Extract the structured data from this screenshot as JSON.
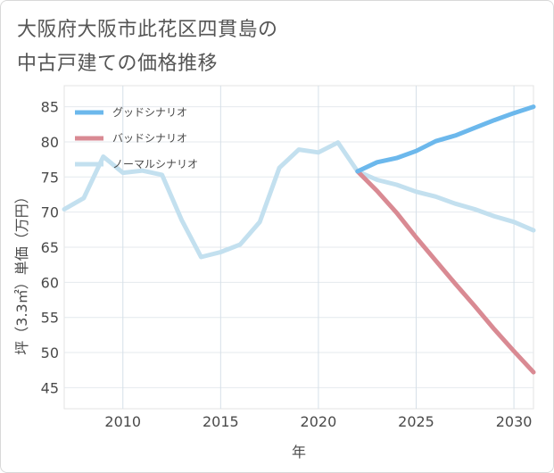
{
  "title_lines": [
    "大阪府大阪市此花区四貫島の",
    "中古戸建ての価格推移"
  ],
  "chart_data": {
    "type": "line",
    "title": "大阪府大阪市此花区四貫島の中古戸建ての価格推移",
    "xlabel": "年",
    "ylabel": "坪（3.3㎡）単価（万円）",
    "xlim": [
      2007,
      2031
    ],
    "ylim": [
      42,
      88
    ],
    "xticks": [
      2010,
      2015,
      2020,
      2025,
      2030
    ],
    "yticks": [
      45,
      50,
      55,
      60,
      65,
      70,
      75,
      80,
      85
    ],
    "grid": true,
    "legend_position": "top-left",
    "series": [
      {
        "name": "グッドシナリオ",
        "color": "#6cb8ec",
        "x": [
          2022,
          2023,
          2024,
          2025,
          2026,
          2027,
          2028,
          2029,
          2030,
          2031
        ],
        "values": [
          75.8,
          77.1,
          77.7,
          78.7,
          80.1,
          80.9,
          82.0,
          83.1,
          84.1,
          85.0
        ]
      },
      {
        "name": "バッドシナリオ",
        "color": "#d98a93",
        "x": [
          2022,
          2023,
          2024,
          2025,
          2026,
          2027,
          2028,
          2029,
          2030,
          2031
        ],
        "values": [
          75.8,
          73.0,
          69.9,
          66.4,
          63.1,
          59.8,
          56.6,
          53.3,
          50.2,
          47.2
        ]
      },
      {
        "name": "ノーマルシナリオ",
        "color": "#c3e0ef",
        "x": [
          2007,
          2008,
          2009,
          2010,
          2011,
          2012,
          2013,
          2014,
          2015,
          2016,
          2017,
          2018,
          2019,
          2020,
          2021,
          2022,
          2023,
          2024,
          2025,
          2026,
          2027,
          2028,
          2029,
          2030,
          2031
        ],
        "values": [
          70.4,
          72.0,
          77.9,
          75.6,
          75.9,
          75.3,
          68.9,
          63.6,
          64.3,
          65.4,
          68.6,
          76.3,
          78.9,
          78.5,
          79.9,
          75.8,
          74.6,
          73.9,
          72.9,
          72.2,
          71.2,
          70.4,
          69.4,
          68.6,
          67.4
        ]
      }
    ]
  }
}
